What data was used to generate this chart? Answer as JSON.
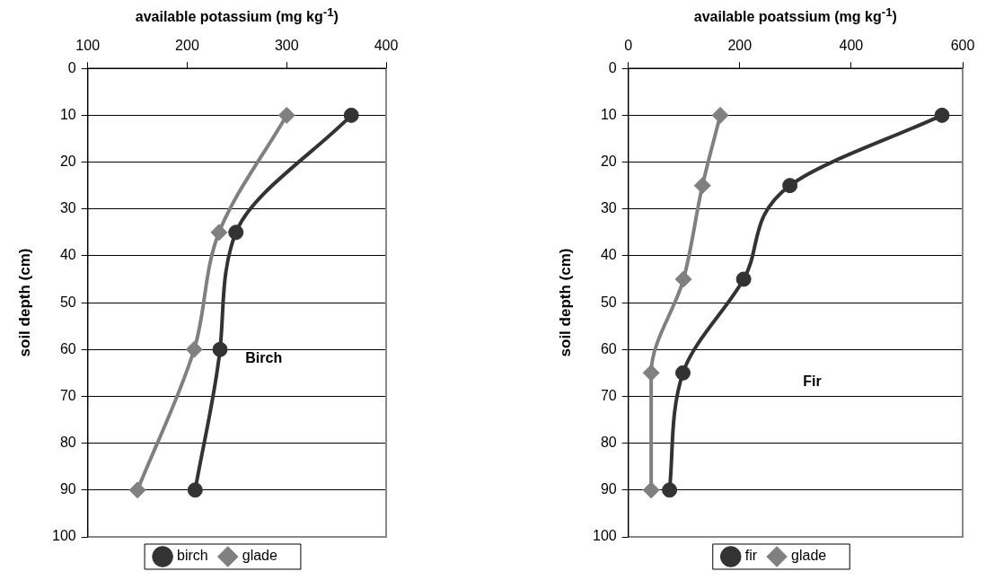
{
  "chart_data": [
    {
      "type": "line",
      "xlabel": "available potassium (mg kg$^{-1}$)",
      "ylabel": "soil depth (cm)",
      "xlim": [
        100,
        400
      ],
      "xticks": [
        100,
        200,
        300,
        400
      ],
      "ylim": [
        100,
        0
      ],
      "yticks": [
        0,
        10,
        20,
        30,
        40,
        50,
        60,
        70,
        80,
        90,
        100
      ],
      "grid": "y",
      "legend": "bottom",
      "annotations": [
        "Birch"
      ],
      "series": [
        {
          "name": "birch",
          "color": "#333333",
          "marker": "circle",
          "x": [
            365,
            249,
            233,
            208
          ],
          "values": [
            10,
            35,
            60,
            90
          ]
        },
        {
          "name": "glade",
          "color": "#808080",
          "marker": "diamond",
          "x": [
            300,
            232,
            207,
            150
          ],
          "values": [
            10,
            35,
            60,
            90
          ]
        }
      ]
    },
    {
      "type": "line",
      "xlabel": "available poatssium (mg kg$^{-1}$)",
      "ylabel": "soil depth (cm)",
      "xlim": [
        0,
        600
      ],
      "xticks": [
        0,
        200,
        400,
        600
      ],
      "ylim": [
        100,
        0
      ],
      "yticks": [
        0,
        10,
        20,
        30,
        40,
        50,
        60,
        70,
        80,
        90,
        100
      ],
      "grid": "y",
      "legend": "bottom",
      "annotations": [
        "Fir"
      ],
      "series": [
        {
          "name": "fir",
          "color": "#333333",
          "marker": "circle",
          "x": [
            563,
            290,
            207,
            98,
            74
          ],
          "values": [
            10,
            25,
            45,
            65,
            90
          ]
        },
        {
          "name": "glade",
          "color": "#808080",
          "marker": "diamond",
          "x": [
            165,
            133,
            99,
            41,
            41
          ],
          "values": [
            10,
            25,
            45,
            65,
            90
          ]
        }
      ]
    }
  ]
}
